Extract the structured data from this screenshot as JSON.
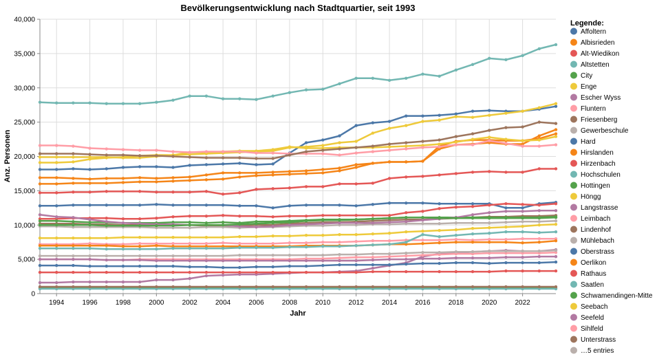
{
  "chart_data": {
    "type": "line",
    "title": "Bevölkerungsentwicklung nach Stadtquartier, seit 1993",
    "xlabel": "Jahr",
    "ylabel": "Anz. Personen",
    "xlim": [
      1993,
      2024
    ],
    "ylim": [
      0,
      40000
    ],
    "x_ticks": [
      "1994",
      "1996",
      "1998",
      "2000",
      "2002",
      "2004",
      "2006",
      "2008",
      "2010",
      "2012",
      "2014",
      "2016",
      "2018",
      "2020",
      "2022"
    ],
    "y_ticks": [
      "0",
      "5,000",
      "10,000",
      "15,000",
      "20,000",
      "25,000",
      "30,000",
      "35,000",
      "40,000"
    ],
    "grid": true,
    "legend_title": "Legende:",
    "legend_placement": "right",
    "legend_more": "…5 entries",
    "x": [
      1993,
      1994,
      1995,
      1996,
      1997,
      1998,
      1999,
      2000,
      2001,
      2002,
      2003,
      2004,
      2005,
      2006,
      2007,
      2008,
      2009,
      2010,
      2011,
      2012,
      2013,
      2014,
      2015,
      2016,
      2017,
      2018,
      2019,
      2020,
      2021,
      2022,
      2023,
      2024
    ],
    "series": [
      {
        "name": "Affoltern",
        "color": "#4c78a8",
        "values": [
          18100,
          18100,
          18200,
          18100,
          18200,
          18400,
          18500,
          18500,
          18400,
          18700,
          18800,
          18900,
          19000,
          18800,
          18900,
          20500,
          22000,
          22400,
          23000,
          24500,
          24900,
          25100,
          25900,
          25900,
          26000,
          26200,
          26600,
          26700,
          26600,
          26600,
          26900,
          27300
        ]
      },
      {
        "name": "Albisrieden",
        "color": "#f58518",
        "values": [
          16900,
          16900,
          16800,
          16700,
          16800,
          16800,
          16900,
          16800,
          16900,
          17000,
          17300,
          17600,
          17600,
          17600,
          17700,
          17800,
          17900,
          18100,
          18300,
          18800,
          19000,
          19200,
          19200,
          19300,
          21500,
          22200,
          22400,
          22400,
          22300,
          22300,
          22600,
          23300
        ]
      },
      {
        "name": "Alt-Wiedikon",
        "color": "#e45756",
        "values": [
          14700,
          14700,
          14800,
          14800,
          14900,
          14900,
          14900,
          14800,
          14800,
          14800,
          14900,
          14500,
          14700,
          15200,
          15300,
          15400,
          15600,
          15600,
          16000,
          16000,
          16100,
          16800,
          17000,
          17100,
          17300,
          17500,
          17700,
          17800,
          17700,
          17700,
          18200,
          18200
        ]
      },
      {
        "name": "Altstetten",
        "color": "#72b7b2",
        "values": [
          27900,
          27800,
          27800,
          27800,
          27700,
          27700,
          27700,
          27900,
          28200,
          28800,
          28800,
          28400,
          28400,
          28300,
          28800,
          29300,
          29700,
          29800,
          30600,
          31400,
          31400,
          31100,
          31400,
          32000,
          31700,
          32600,
          33400,
          34300,
          34100,
          34700,
          35700,
          36300
        ]
      },
      {
        "name": "City",
        "color": "#54a24b",
        "values": [
          800,
          800,
          800,
          800,
          800,
          800,
          800,
          800,
          800,
          800,
          800,
          800,
          800,
          800,
          800,
          800,
          800,
          800,
          800,
          800,
          800,
          800,
          800,
          800,
          800,
          800,
          800,
          800,
          800,
          800,
          800,
          800
        ]
      },
      {
        "name": "Enge",
        "color": "#eeca3b",
        "values": [
          8100,
          8100,
          8100,
          8100,
          8100,
          8200,
          8200,
          8200,
          8200,
          8200,
          8200,
          8200,
          8300,
          8300,
          8400,
          8400,
          8500,
          8500,
          8600,
          8600,
          8700,
          8800,
          9000,
          9100,
          9200,
          9300,
          9500,
          9600,
          9700,
          9800,
          10000,
          10100
        ]
      },
      {
        "name": "Escher Wyss",
        "color": "#b279a2",
        "values": [
          1600,
          1600,
          1700,
          1700,
          1700,
          1700,
          1700,
          2000,
          2000,
          2200,
          2600,
          2700,
          2800,
          2800,
          2900,
          3000,
          3100,
          3100,
          3200,
          3300,
          3700,
          4100,
          4500,
          5400,
          5800,
          5900,
          6100,
          6200,
          6300,
          6200,
          6200,
          6400
        ]
      },
      {
        "name": "Fluntern",
        "color": "#ff9da6",
        "values": [
          7200,
          7200,
          7200,
          7300,
          7200,
          7200,
          7300,
          7300,
          7300,
          7300,
          7300,
          7400,
          7300,
          7300,
          7300,
          7400,
          7400,
          7500,
          7500,
          7600,
          7700,
          7700,
          7800,
          7800,
          7800,
          7900,
          7800,
          7900,
          7900,
          8000,
          8000,
          8000
        ]
      },
      {
        "name": "Friesenberg",
        "color": "#9d755d",
        "values": [
          10200,
          10200,
          10200,
          10100,
          10100,
          10000,
          10000,
          10000,
          10000,
          10000,
          9900,
          9900,
          9900,
          10000,
          10000,
          10200,
          10300,
          10400,
          10400,
          10500,
          10600,
          10700,
          10800,
          10800,
          10900,
          11000,
          11100,
          11200,
          11200,
          11300,
          11300,
          11400
        ]
      },
      {
        "name": "Gewerbeschule",
        "color": "#bab0ac",
        "values": [
          9800,
          9800,
          9700,
          9700,
          9700,
          9700,
          9700,
          9600,
          9600,
          9600,
          9700,
          9700,
          9600,
          9700,
          9700,
          9800,
          9900,
          9900,
          10000,
          10000,
          10100,
          10100,
          10200,
          10200,
          10200,
          10300,
          10300,
          10300,
          10400,
          10500,
          10500,
          10600
        ]
      },
      {
        "name": "Hard",
        "color": "#4c78a8",
        "values": [
          12800,
          12800,
          12900,
          12900,
          12900,
          12900,
          12900,
          13000,
          12900,
          12900,
          12900,
          12900,
          12800,
          12800,
          12500,
          12800,
          12900,
          12900,
          12900,
          12800,
          13000,
          13200,
          13200,
          13200,
          13100,
          13100,
          13100,
          13100,
          12500,
          12500,
          13100,
          13300
        ]
      },
      {
        "name": "Hirslanden",
        "color": "#f58518",
        "values": [
          7000,
          7000,
          7000,
          7000,
          7000,
          6900,
          6900,
          7000,
          6900,
          6900,
          6900,
          6900,
          6900,
          6900,
          6900,
          6900,
          7000,
          7000,
          7000,
          7000,
          7100,
          7200,
          7200,
          7300,
          7400,
          7500,
          7500,
          7500,
          7500,
          7400,
          7500,
          7700
        ]
      },
      {
        "name": "Hirzenbach",
        "color": "#e45756",
        "values": [
          10900,
          10900,
          11000,
          11000,
          11000,
          10900,
          10900,
          11000,
          11200,
          11300,
          11300,
          11400,
          11300,
          11300,
          11200,
          11300,
          11300,
          11400,
          11400,
          11400,
          11400,
          11400,
          11800,
          12000,
          12400,
          12600,
          12700,
          12900,
          13100,
          13000,
          12900,
          13100
        ]
      },
      {
        "name": "Hochschulen",
        "color": "#72b7b2",
        "values": [
          700,
          700,
          700,
          700,
          700,
          700,
          700,
          700,
          700,
          700,
          700,
          700,
          700,
          700,
          700,
          700,
          700,
          700,
          700,
          700,
          700,
          700,
          700,
          700,
          700,
          700,
          700,
          700,
          700,
          700,
          700,
          700
        ]
      },
      {
        "name": "Hottingen",
        "color": "#54a24b",
        "values": [
          10600,
          10600,
          10500,
          10400,
          10400,
          10300,
          10300,
          10300,
          10400,
          10400,
          10300,
          10400,
          10300,
          10500,
          10500,
          10600,
          10700,
          10800,
          10800,
          10800,
          10900,
          11000,
          11100,
          11100,
          11100,
          11100,
          11100,
          11100,
          11100,
          11100,
          11100,
          11200
        ]
      },
      {
        "name": "Höngg",
        "color": "#eeca3b",
        "values": [
          19100,
          19100,
          19200,
          19600,
          19800,
          19900,
          20100,
          20200,
          20200,
          20300,
          20400,
          20500,
          20600,
          20700,
          20800,
          21300,
          21400,
          21600,
          22000,
          22200,
          23400,
          24100,
          24500,
          25100,
          25300,
          25800,
          25700,
          26000,
          26300,
          26600,
          27100,
          27700
        ]
      },
      {
        "name": "Langstrasse",
        "color": "#b279a2",
        "values": [
          11500,
          11200,
          11100,
          10800,
          10500,
          10300,
          10200,
          10100,
          10100,
          10000,
          10000,
          10000,
          9800,
          9700,
          9800,
          10000,
          10100,
          10200,
          10300,
          10300,
          10300,
          10400,
          10500,
          10700,
          10900,
          11100,
          11500,
          11800,
          12000,
          12000,
          12100,
          12100
        ]
      },
      {
        "name": "Leimbach",
        "color": "#ff9da6",
        "values": [
          5000,
          5000,
          5000,
          5000,
          4900,
          4900,
          5000,
          5000,
          5000,
          5000,
          5000,
          5000,
          5000,
          5000,
          5000,
          5000,
          5100,
          5100,
          5200,
          5300,
          5300,
          5400,
          5500,
          5600,
          5700,
          5800,
          5800,
          5900,
          5900,
          5900,
          5900,
          6000
        ]
      },
      {
        "name": "Lindenhof",
        "color": "#9d755d",
        "values": [
          1000,
          1000,
          1000,
          1000,
          1000,
          1000,
          1000,
          1000,
          1000,
          1000,
          1000,
          1000,
          1000,
          1000,
          1000,
          1000,
          1000,
          1000,
          1000,
          1000,
          1000,
          1000,
          1000,
          1000,
          1000,
          1000,
          1000,
          1000,
          1000,
          1000,
          1000,
          1000
        ]
      },
      {
        "name": "Mühlebach",
        "color": "#bab0ac",
        "values": [
          5500,
          5500,
          5500,
          5500,
          5500,
          5500,
          5500,
          5500,
          5500,
          5500,
          5500,
          5500,
          5600,
          5600,
          5600,
          5600,
          5600,
          5600,
          5700,
          5700,
          5800,
          5800,
          5900,
          6000,
          6000,
          6100,
          6100,
          6200,
          6200,
          6200,
          6200,
          6300
        ]
      },
      {
        "name": "Oberstrass",
        "color": "#4c78a8",
        "values": [
          4100,
          4100,
          4100,
          4000,
          4000,
          4000,
          4000,
          4000,
          4000,
          3900,
          3900,
          3800,
          3800,
          3900,
          3900,
          4000,
          4000,
          4100,
          4200,
          4200,
          4200,
          4200,
          4300,
          4400,
          4400,
          4500,
          4500,
          4400,
          4500,
          4500,
          4500,
          4600
        ]
      },
      {
        "name": "Oerlikon",
        "color": "#f58518",
        "values": [
          16000,
          16000,
          16100,
          16100,
          16100,
          16200,
          16300,
          16300,
          16400,
          16500,
          16600,
          16700,
          17000,
          17200,
          17300,
          17400,
          17500,
          17600,
          17900,
          18400,
          19000,
          19200,
          19200,
          19300,
          21100,
          21700,
          21800,
          22000,
          21800,
          21800,
          23000,
          23900
        ]
      },
      {
        "name": "Rathaus",
        "color": "#e45756",
        "values": [
          3100,
          3100,
          3100,
          3100,
          3100,
          3100,
          3100,
          3100,
          3100,
          3100,
          3100,
          3100,
          3100,
          3100,
          3100,
          3100,
          3100,
          3100,
          3100,
          3100,
          3200,
          3200,
          3200,
          3200,
          3200,
          3200,
          3200,
          3200,
          3300,
          3300,
          3300,
          3300
        ]
      },
      {
        "name": "Saatlen",
        "color": "#72b7b2",
        "values": [
          6600,
          6600,
          6600,
          6600,
          6500,
          6500,
          6500,
          6500,
          6600,
          6600,
          6600,
          6600,
          6700,
          6700,
          6700,
          6800,
          6800,
          6900,
          6900,
          7000,
          7100,
          7200,
          7500,
          8600,
          8300,
          8500,
          8700,
          8800,
          9000,
          9000,
          8900,
          9000
        ]
      },
      {
        "name": "Schwamendingen-Mitte",
        "color": "#54a24b",
        "values": [
          10000,
          10000,
          10000,
          10000,
          9900,
          9900,
          9900,
          9900,
          9900,
          10000,
          10000,
          10000,
          10100,
          10200,
          10300,
          10400,
          10600,
          10700,
          10700,
          10800,
          10900,
          11000,
          11100,
          11100,
          11000,
          11000,
          11000,
          11000,
          11000,
          11000,
          11000,
          11100
        ]
      },
      {
        "name": "Seebach",
        "color": "#eeca3b",
        "values": [
          19900,
          19900,
          19900,
          19900,
          19900,
          19800,
          19800,
          20000,
          20200,
          20600,
          20600,
          20700,
          20800,
          20800,
          21000,
          21400,
          21200,
          21200,
          21300,
          21300,
          21300,
          21400,
          21500,
          21600,
          21800,
          22100,
          22500,
          22800,
          22500,
          22300,
          22400,
          22900
        ]
      },
      {
        "name": "Seefeld",
        "color": "#b279a2",
        "values": [
          5000,
          5000,
          5000,
          5000,
          4900,
          4900,
          4900,
          4800,
          4800,
          4800,
          4800,
          4800,
          4800,
          4800,
          4800,
          4800,
          4800,
          4800,
          4800,
          4800,
          4900,
          5000,
          5000,
          5100,
          5100,
          5200,
          5200,
          5200,
          5300,
          5300,
          5400,
          5400
        ]
      },
      {
        "name": "Sihlfeld",
        "color": "#ff9da6",
        "values": [
          21600,
          21600,
          21500,
          21200,
          21100,
          21000,
          20900,
          20900,
          20700,
          20600,
          20700,
          20700,
          20700,
          20500,
          20500,
          20400,
          20400,
          20400,
          20200,
          20500,
          20700,
          20900,
          21100,
          21300,
          21400,
          21700,
          21700,
          22300,
          21900,
          21500,
          21500,
          21700
        ]
      },
      {
        "name": "Unterstrass",
        "color": "#9d755d",
        "values": [
          20400,
          20400,
          20400,
          20300,
          20200,
          20200,
          20100,
          20100,
          20000,
          19900,
          19800,
          19800,
          19800,
          19700,
          19700,
          20200,
          20700,
          20900,
          21100,
          21300,
          21500,
          21800,
          22000,
          22200,
          22400,
          22900,
          23300,
          23800,
          24200,
          24300,
          25000,
          24800
        ]
      }
    ]
  }
}
